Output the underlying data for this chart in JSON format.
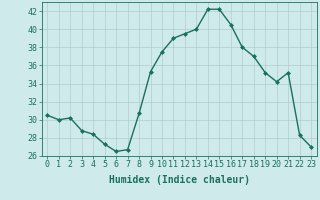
{
  "x": [
    0,
    1,
    2,
    3,
    4,
    5,
    6,
    7,
    8,
    9,
    10,
    11,
    12,
    13,
    14,
    15,
    16,
    17,
    18,
    19,
    20,
    21,
    22,
    23
  ],
  "y": [
    30.5,
    30.0,
    30.2,
    28.8,
    28.4,
    27.3,
    26.5,
    26.7,
    30.7,
    35.3,
    37.5,
    39.0,
    39.5,
    40.0,
    42.2,
    42.2,
    40.5,
    38.0,
    37.0,
    35.2,
    34.2,
    35.2,
    28.3,
    27.0
  ],
  "line_color": "#1a7060",
  "marker": "D",
  "markersize": 2.0,
  "linewidth": 1.0,
  "xlabel": "Humidex (Indice chaleur)",
  "xlim": [
    -0.5,
    23.5
  ],
  "ylim": [
    26,
    43
  ],
  "yticks": [
    26,
    28,
    30,
    32,
    34,
    36,
    38,
    40,
    42
  ],
  "xticks": [
    0,
    1,
    2,
    3,
    4,
    5,
    6,
    7,
    8,
    9,
    10,
    11,
    12,
    13,
    14,
    15,
    16,
    17,
    18,
    19,
    20,
    21,
    22,
    23
  ],
  "bg_color": "#ceeaea",
  "grid_color": "#b0cccc",
  "font_color": "#1a7060",
  "tick_fontsize": 6.0,
  "xlabel_fontsize": 7.0
}
